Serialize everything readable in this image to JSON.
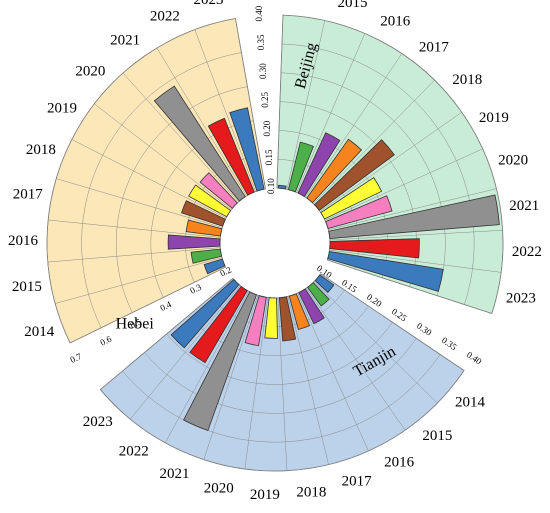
{
  "chart_data": {
    "type": "radial-bar",
    "years": [
      "2014",
      "2015",
      "2016",
      "2017",
      "2018",
      "2019",
      "2020",
      "2021",
      "2022",
      "2023"
    ],
    "colors": {
      "2014": "#3a7abd",
      "2015": "#4daf4a",
      "2016": "#8e44ad",
      "2017": "#f5841f",
      "2018": "#a0522d",
      "2019": "#ffff33",
      "2020": "#f57fbf",
      "2021": "#909090",
      "2022": "#e41a1c",
      "2023": "#3a7abd"
    },
    "panels": [
      {
        "name": "Beijing",
        "background": "#c9ecd7",
        "ticks": [
          "0.10",
          "0.15",
          "0.20",
          "0.25",
          "0.30",
          "0.35",
          "0.40"
        ],
        "range": [
          0.1,
          0.4
        ],
        "values": [
          0.105,
          0.185,
          0.215,
          0.225,
          0.262,
          0.21,
          0.215,
          0.395,
          0.255,
          0.3
        ]
      },
      {
        "name": "Tianjin",
        "background": "#bcd2ea",
        "ticks": [
          "0.10",
          "0.15",
          "0.20",
          "0.25",
          "0.30",
          "0.35",
          "0.40"
        ],
        "range": [
          0.1,
          0.4
        ],
        "values": [
          0.13,
          0.14,
          0.16,
          0.16,
          0.175,
          0.17,
          0.185,
          0.35,
          0.245,
          0.245
        ]
      },
      {
        "name": "Hebei",
        "background": "#fce7b8",
        "ticks": [
          "0.2",
          "0.3",
          "0.4",
          "0.5",
          "0.6",
          "0.7"
        ],
        "range": [
          0.2,
          0.7
        ],
        "values": [
          0.255,
          0.285,
          0.35,
          0.3,
          0.325,
          0.325,
          0.32,
          0.58,
          0.43,
          0.44
        ]
      }
    ]
  }
}
